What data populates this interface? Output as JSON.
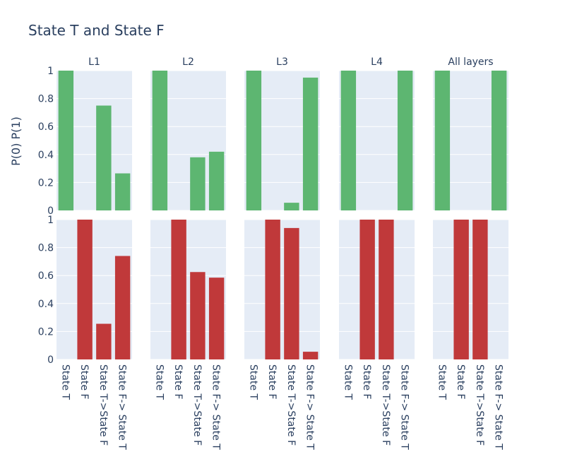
{
  "chart_data": {
    "type": "bar",
    "title": "State T and State F",
    "ylabel": "P(0) P(1)",
    "categories": [
      "State T",
      "State F",
      "State T->State F",
      "State F-> State T"
    ],
    "ylim": [
      0,
      1
    ],
    "yticks": [
      "0",
      "0.2",
      "0.4",
      "0.6",
      "0.8",
      "1"
    ],
    "colors": {
      "top": "#5db671",
      "bottom": "#c0393a",
      "panel_bg": "#e5ecf6",
      "grid": "#ffffff",
      "text": "#2a3f5f"
    },
    "panels": [
      {
        "label": "L1",
        "top": [
          1,
          0,
          0.75,
          0.265
        ],
        "bottom": [
          0,
          1,
          0.255,
          0.74
        ]
      },
      {
        "label": "L2",
        "top": [
          1,
          0,
          0.38,
          0.42
        ],
        "bottom": [
          0,
          1,
          0.625,
          0.585
        ]
      },
      {
        "label": "L3",
        "top": [
          1,
          0,
          0.055,
          0.95
        ],
        "bottom": [
          0,
          1,
          0.94,
          0.055
        ]
      },
      {
        "label": "L4",
        "top": [
          1,
          0,
          0,
          1
        ],
        "bottom": [
          0,
          1,
          1,
          0
        ]
      },
      {
        "label": "All layers",
        "top": [
          1,
          0,
          0,
          1
        ],
        "bottom": [
          0,
          1,
          1,
          0
        ]
      }
    ]
  }
}
